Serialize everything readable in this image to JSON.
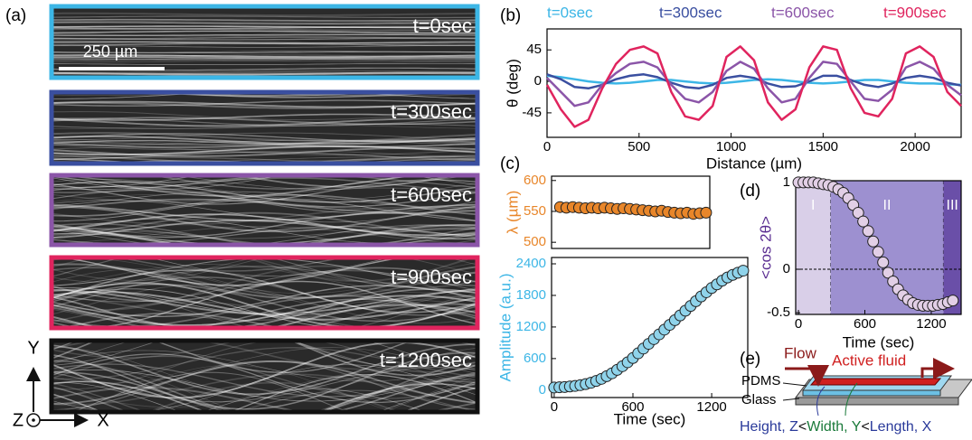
{
  "panel_labels": [
    "(a)",
    "(b)",
    "(c)",
    "(d)",
    "(e)"
  ],
  "images": [
    {
      "label": "t=0sec",
      "color": "#3cb6e6"
    },
    {
      "label": "t=300sec",
      "color": "#3a4fa0"
    },
    {
      "label": "t=600sec",
      "color": "#8b55a8"
    },
    {
      "label": "t=900sec",
      "color": "#e0245e"
    },
    {
      "label": "t=1200sec",
      "color": "#111111"
    }
  ],
  "scale_bar": "250 µm",
  "axes_glyph": {
    "y": "Y",
    "z": "Z",
    "x": "X"
  },
  "chart_data": [
    {
      "type": "line",
      "xlabel": "Distance (µm)",
      "ylabel": "θ (deg)",
      "x": [
        0,
        75,
        150,
        225,
        300,
        375,
        450,
        525,
        600,
        675,
        750,
        825,
        900,
        975,
        1050,
        1125,
        1200,
        1275,
        1350,
        1425,
        1500,
        1575,
        1650,
        1725,
        1800,
        1875,
        1950,
        2025,
        2100,
        2175,
        2250
      ],
      "series": [
        {
          "name": "t=0sec",
          "color": "#3cb6e6",
          "values": [
            8,
            6,
            3,
            0,
            -2,
            -3,
            -2,
            0,
            2,
            2,
            0,
            -2,
            -3,
            -2,
            0,
            2,
            3,
            2,
            0,
            -2,
            -3,
            -2,
            0,
            2,
            2,
            0,
            -2,
            -3,
            -3,
            -4,
            -5
          ]
        },
        {
          "name": "t=300sec",
          "color": "#3a4fa0",
          "values": [
            10,
            3,
            -8,
            -10,
            -5,
            3,
            8,
            10,
            6,
            -2,
            -8,
            -10,
            -5,
            5,
            8,
            5,
            -3,
            -8,
            -7,
            0,
            8,
            8,
            2,
            -5,
            -8,
            -3,
            5,
            8,
            5,
            -2,
            -6
          ]
        },
        {
          "name": "t=600sec",
          "color": "#8b55a8",
          "values": [
            5,
            -15,
            -35,
            -30,
            -5,
            12,
            25,
            28,
            20,
            -5,
            -25,
            -30,
            -15,
            15,
            28,
            18,
            -10,
            -30,
            -25,
            5,
            28,
            25,
            0,
            -25,
            -28,
            -12,
            20,
            28,
            18,
            -5,
            -20
          ]
        },
        {
          "name": "t=900sec",
          "color": "#e0245e",
          "values": [
            -5,
            -40,
            -65,
            -55,
            -10,
            25,
            45,
            50,
            40,
            -15,
            -50,
            -55,
            -35,
            35,
            50,
            30,
            -30,
            -55,
            -40,
            20,
            50,
            45,
            -10,
            -45,
            -50,
            -25,
            40,
            50,
            35,
            -15,
            -35
          ]
        }
      ],
      "xlim": [
        0,
        2250
      ],
      "ylim": [
        -80,
        75
      ],
      "xticks": [
        0,
        500,
        1000,
        1500,
        2000
      ],
      "yticks": [
        -45,
        0,
        45
      ]
    },
    {
      "type": "scatter",
      "ylabel": "λ (µm)",
      "color": "#e8862a",
      "x": [
        60,
        120,
        180,
        240,
        300,
        360,
        420,
        480,
        540,
        600,
        660,
        720,
        780,
        840,
        900,
        960,
        1020,
        1080,
        1140,
        1200,
        1260,
        1320,
        1380,
        1440
      ],
      "values": [
        557,
        556,
        557,
        556,
        555,
        556,
        555,
        556,
        555,
        554,
        555,
        554,
        553,
        552,
        551,
        550,
        551,
        549,
        548,
        547,
        548,
        546,
        547,
        548
      ],
      "xlim": [
        -20,
        1475
      ],
      "ylim": [
        490,
        607
      ],
      "yticks": [
        500,
        550,
        600
      ]
    },
    {
      "type": "scatter",
      "xlabel": "Time (sec)",
      "ylabel": "Amplitude (a.u.)",
      "color": "#8fd3ea",
      "x": [
        0,
        40,
        80,
        120,
        160,
        200,
        240,
        280,
        320,
        360,
        400,
        440,
        480,
        520,
        560,
        600,
        640,
        680,
        720,
        760,
        800,
        840,
        880,
        920,
        960,
        1000,
        1040,
        1080,
        1120,
        1160,
        1200,
        1240,
        1280,
        1320,
        1360,
        1400,
        1440
      ],
      "values": [
        50,
        55,
        60,
        70,
        80,
        95,
        115,
        140,
        175,
        215,
        265,
        320,
        385,
        455,
        530,
        610,
        700,
        790,
        880,
        970,
        1060,
        1150,
        1240,
        1330,
        1420,
        1510,
        1600,
        1690,
        1780,
        1860,
        1940,
        2010,
        2080,
        2140,
        2190,
        2230,
        2270
      ],
      "xlim": [
        -20,
        1475
      ],
      "ylim": [
        -140,
        2520
      ],
      "xticks": [
        0,
        600,
        1200
      ],
      "yticks": [
        0,
        600,
        1200,
        1800,
        2400
      ]
    },
    {
      "type": "scatter",
      "xlabel": "Time (sec)",
      "ylabel": "<cos 2θ>",
      "color": "#e2cfe6",
      "x": [
        0,
        45,
        90,
        135,
        180,
        225,
        270,
        315,
        360,
        405,
        450,
        495,
        540,
        585,
        630,
        675,
        720,
        765,
        810,
        855,
        900,
        945,
        990,
        1035,
        1080,
        1125,
        1170,
        1215,
        1260,
        1305,
        1350,
        1395
      ],
      "values": [
        1,
        1,
        1,
        1,
        0.99,
        0.98,
        0.97,
        0.95,
        0.92,
        0.88,
        0.82,
        0.74,
        0.65,
        0.55,
        0.44,
        0.32,
        0.2,
        0.08,
        -0.04,
        -0.14,
        -0.23,
        -0.3,
        -0.35,
        -0.39,
        -0.41,
        -0.42,
        -0.42,
        -0.42,
        -0.41,
        -0.4,
        -0.38,
        -0.36
      ],
      "regions": [
        {
          "label": "I",
          "start": -25,
          "end": 290,
          "color": "#d9cfe8"
        },
        {
          "label": "II",
          "start": 290,
          "end": 1310,
          "color": "#9d90d0"
        },
        {
          "label": "III",
          "start": 1310,
          "end": 1470,
          "color": "#6a4fa8"
        }
      ],
      "reference_line": 0,
      "xlim": [
        -25,
        1470
      ],
      "ylim": [
        -0.52,
        1.02
      ],
      "xticks": [
        0,
        600,
        1200
      ],
      "yticks": [
        -0.5,
        0,
        1
      ]
    }
  ],
  "diagram": {
    "flow": "Flow",
    "active_fluid": "Active fluid",
    "pdms": "PDMS",
    "glass": "Glass",
    "dimensions": [
      "Height, Z",
      "<",
      "Width, Y",
      "<",
      "Length, X"
    ]
  }
}
